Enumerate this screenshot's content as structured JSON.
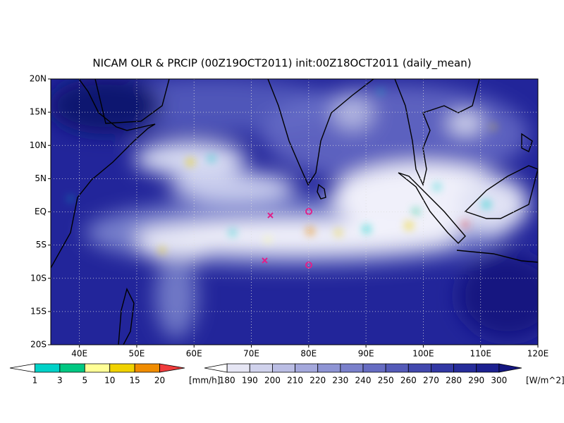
{
  "title": "NICAM OLR & PRCIP (00Z19OCT2011) init:00Z18OCT2011 (daily_mean)",
  "map": {
    "lon_range": [
      35,
      120
    ],
    "lat_range": [
      -20,
      20
    ],
    "lat_ticks": [
      {
        "value": 20,
        "label": "20N"
      },
      {
        "value": 15,
        "label": "15N"
      },
      {
        "value": 10,
        "label": "10N"
      },
      {
        "value": 5,
        "label": "5N"
      },
      {
        "value": 0,
        "label": "EQ"
      },
      {
        "value": -5,
        "label": "5S"
      },
      {
        "value": -10,
        "label": "10S"
      },
      {
        "value": -15,
        "label": "15S"
      },
      {
        "value": -20,
        "label": "20S"
      }
    ],
    "lon_ticks": [
      {
        "value": 40,
        "label": "40E"
      },
      {
        "value": 50,
        "label": "50E"
      },
      {
        "value": 60,
        "label": "60E"
      },
      {
        "value": 70,
        "label": "70E"
      },
      {
        "value": 80,
        "label": "80E"
      },
      {
        "value": 90,
        "label": "90E"
      },
      {
        "value": 100,
        "label": "100E"
      },
      {
        "value": 110,
        "label": "110E"
      },
      {
        "value": 120,
        "label": "120E"
      }
    ]
  },
  "precip_colorbar": {
    "labels": [
      1,
      3,
      5,
      10,
      15,
      20
    ],
    "unit": "[mm/h]",
    "colors": [
      "#ffffff",
      "#00d2c8",
      "#00c882",
      "#ffff96",
      "#f0d200",
      "#f08c00",
      "#f03c3c"
    ]
  },
  "olr_colorbar": {
    "labels": [
      180,
      190,
      200,
      210,
      220,
      230,
      240,
      250,
      260,
      270,
      280,
      290,
      300
    ],
    "unit": "[W/m^2]",
    "colors": [
      "#ffffff",
      "#e6e6f4",
      "#d0d2ec",
      "#babde4",
      "#a4a8dc",
      "#8e94d4",
      "#7a80cb",
      "#666cc2",
      "#545ab8",
      "#4248ae",
      "#3238a4",
      "#262c9a",
      "#1c2090",
      "#141680"
    ]
  }
}
